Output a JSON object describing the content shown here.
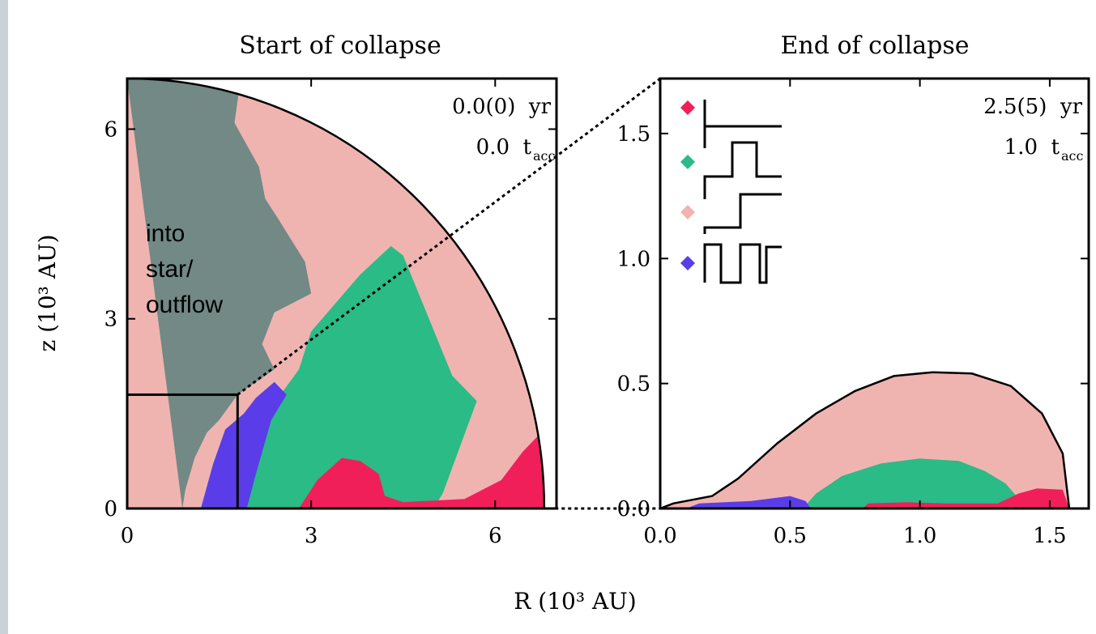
{
  "chart_data": [
    {
      "type": "area",
      "title": "Start of collapse",
      "xlabel": "R (10³ AU)",
      "ylabel": "z (10³ AU)",
      "xlim": [
        0,
        7.0
      ],
      "ylim": [
        0,
        6.8
      ],
      "xticks": [
        0,
        3,
        6
      ],
      "yticks": [
        0,
        3,
        6
      ],
      "tick_labels_x": [
        "0",
        "3",
        "6"
      ],
      "tick_labels_y": [
        "0",
        "3",
        "6"
      ],
      "time_label": "0.0(0)  yr",
      "tacc_label": "0.0  t",
      "tacc_sub": "acc",
      "annotation": [
        "into",
        "star/",
        "outflow"
      ],
      "zoom_box": {
        "r_max": 1.8,
        "z_max": 1.8
      },
      "outer_radius": 6.8,
      "series": [
        {
          "color": "#f0b4b0",
          "values": [
            [
              0,
              0
            ],
            [
              6.8,
              0
            ],
            [
              6.8,
              6.8
            ],
            [
              0,
              6.8
            ]
          ]
        },
        {
          "color": "#728985",
          "values": [
            [
              0,
              6.8
            ],
            [
              1.85,
              6.8
            ],
            [
              1.75,
              6.1
            ],
            [
              2.15,
              5.4
            ],
            [
              2.25,
              4.9
            ],
            [
              2.45,
              4.6
            ],
            [
              2.9,
              3.9
            ],
            [
              3.0,
              3.4
            ],
            [
              2.4,
              3.1
            ],
            [
              2.2,
              2.6
            ],
            [
              2.4,
              2.2
            ],
            [
              1.8,
              1.8
            ],
            [
              1.5,
              1.4
            ],
            [
              1.3,
              1.2
            ],
            [
              1.1,
              0.8
            ],
            [
              0.95,
              0.3
            ],
            [
              0.9,
              0
            ]
          ]
        },
        {
          "color": "#2abb86",
          "values": [
            [
              1.7,
              0
            ],
            [
              2.0,
              0.6
            ],
            [
              2.35,
              1.6
            ],
            [
              2.8,
              2.2
            ],
            [
              3.0,
              2.8
            ],
            [
              3.8,
              3.7
            ],
            [
              4.3,
              4.15
            ],
            [
              4.5,
              4.0
            ],
            [
              5.3,
              2.1
            ],
            [
              5.7,
              1.7
            ],
            [
              5.15,
              0.25
            ],
            [
              5.0,
              0
            ]
          ]
        },
        {
          "color": "#5a3de8",
          "values": [
            [
              1.2,
              0
            ],
            [
              1.4,
              0.7
            ],
            [
              1.6,
              1.25
            ],
            [
              1.9,
              1.5
            ],
            [
              2.1,
              1.75
            ],
            [
              2.4,
              2.0
            ],
            [
              2.6,
              1.8
            ],
            [
              2.35,
              1.4
            ],
            [
              2.1,
              0.55
            ],
            [
              1.95,
              0
            ]
          ]
        },
        {
          "color": "#f01f5a",
          "values": [
            [
              2.8,
              0
            ],
            [
              3.1,
              0.45
            ],
            [
              3.5,
              0.8
            ],
            [
              3.8,
              0.75
            ],
            [
              4.1,
              0.55
            ],
            [
              4.2,
              0.2
            ],
            [
              4.5,
              0.1
            ],
            [
              5.5,
              0.15
            ],
            [
              6.1,
              0.45
            ],
            [
              6.45,
              0.9
            ],
            [
              6.75,
              1.2
            ],
            [
              6.8,
              0
            ]
          ]
        }
      ]
    },
    {
      "type": "area",
      "title": "End of collapse",
      "xlim": [
        0,
        1.65
      ],
      "ylim": [
        0,
        1.72
      ],
      "xticks": [
        0.0,
        0.5,
        1.0,
        1.5
      ],
      "yticks": [
        0.0,
        0.5,
        1.0,
        1.5
      ],
      "tick_labels_x": [
        "0.0",
        "0.5",
        "1.0",
        "1.5"
      ],
      "tick_labels_y": [
        "0.0",
        "0.5",
        "1.0",
        "1.5"
      ],
      "time_label": "2.5(5)  yr",
      "tacc_label": "1.0  t",
      "tacc_sub": "acc",
      "legend_colors": [
        "#f01f5a",
        "#2abb86",
        "#f0b4b0",
        "#5a3de8"
      ],
      "series": [
        {
          "color": "#f0b4b0",
          "values": [
            [
              0,
              0
            ],
            [
              0.05,
              0.02
            ],
            [
              0.2,
              0.05
            ],
            [
              0.3,
              0.12
            ],
            [
              0.45,
              0.26
            ],
            [
              0.6,
              0.38
            ],
            [
              0.75,
              0.47
            ],
            [
              0.9,
              0.53
            ],
            [
              1.05,
              0.545
            ],
            [
              1.2,
              0.54
            ],
            [
              1.35,
              0.49
            ],
            [
              1.47,
              0.38
            ],
            [
              1.55,
              0.22
            ],
            [
              1.575,
              0
            ]
          ]
        },
        {
          "color": "#2abb86",
          "values": [
            [
              0.55,
              0
            ],
            [
              0.6,
              0.06
            ],
            [
              0.7,
              0.13
            ],
            [
              0.85,
              0.18
            ],
            [
              1.0,
              0.2
            ],
            [
              1.15,
              0.19
            ],
            [
              1.25,
              0.15
            ],
            [
              1.33,
              0.1
            ],
            [
              1.38,
              0.04
            ],
            [
              1.38,
              0
            ]
          ]
        },
        {
          "color": "#5a3de8",
          "values": [
            [
              0.1,
              0
            ],
            [
              0.15,
              0.02
            ],
            [
              0.35,
              0.03
            ],
            [
              0.5,
              0.05
            ],
            [
              0.56,
              0.03
            ],
            [
              0.58,
              0
            ]
          ]
        },
        {
          "color": "#f01f5a",
          "values": [
            [
              0.78,
              0
            ],
            [
              0.8,
              0.02
            ],
            [
              0.95,
              0.025
            ],
            [
              1.1,
              0.02
            ],
            [
              1.3,
              0.02
            ],
            [
              1.38,
              0.06
            ],
            [
              1.45,
              0.08
            ],
            [
              1.55,
              0.075
            ],
            [
              1.575,
              0
            ]
          ]
        }
      ]
    }
  ],
  "shared_xlabel": "R (10³ AU)"
}
